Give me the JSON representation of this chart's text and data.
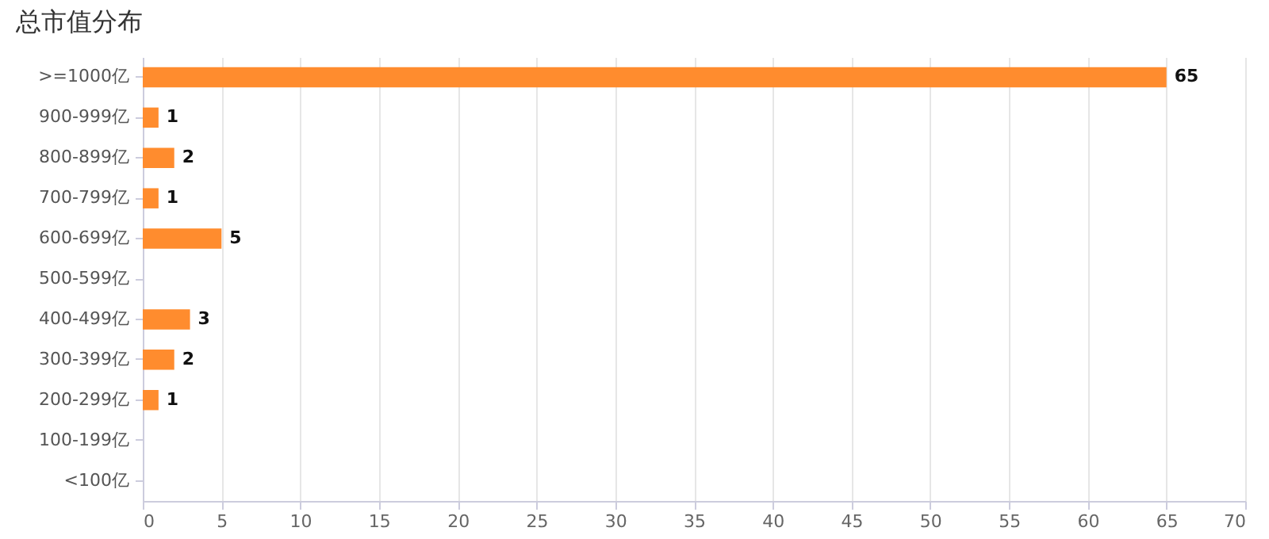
{
  "chart_data": {
    "type": "bar",
    "title": "总市值分布",
    "orientation": "horizontal",
    "categories": [
      ">=1000亿",
      "900-999亿",
      "800-899亿",
      "700-799亿",
      "600-699亿",
      "500-599亿",
      "400-499亿",
      "300-399亿",
      "200-299亿",
      "100-199亿",
      "<100亿"
    ],
    "values": [
      65,
      1,
      2,
      1,
      5,
      0,
      3,
      2,
      1,
      0,
      0
    ],
    "value_labels": [
      "65",
      "1",
      "2",
      "1",
      "5",
      null,
      "3",
      "2",
      "1",
      null,
      null
    ],
    "color": "#ff8c2e",
    "xlim": [
      0,
      70
    ],
    "xticks": [
      0,
      5,
      10,
      15,
      20,
      25,
      30,
      35,
      40,
      45,
      50,
      55,
      60,
      65,
      70
    ],
    "grid": "x"
  }
}
